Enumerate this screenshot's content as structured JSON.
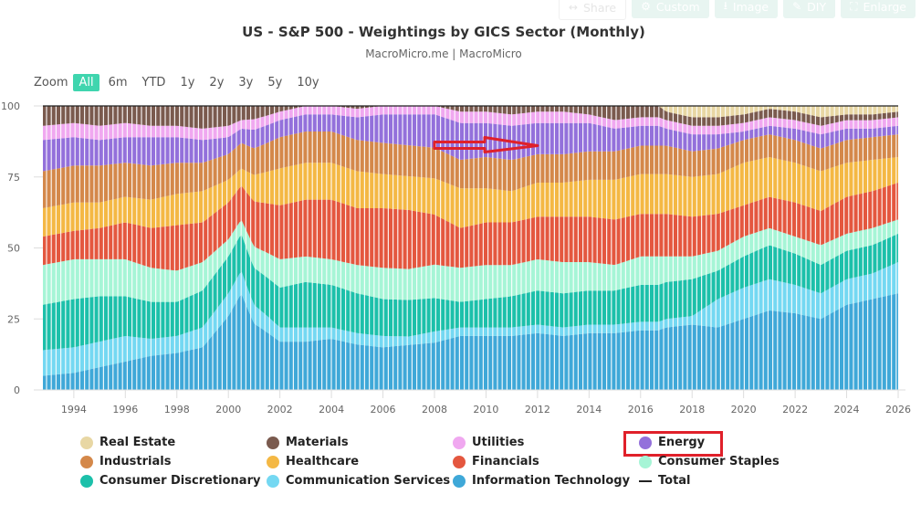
{
  "toolbar": {
    "buttons": [
      {
        "label": "Share",
        "icon": "share-icon"
      },
      {
        "label": "Custom",
        "icon": "gear-icon"
      },
      {
        "label": "Image",
        "icon": "download-icon"
      },
      {
        "label": "DIY",
        "icon": "pencil-icon"
      },
      {
        "label": "Enlarge",
        "icon": "expand-icon"
      }
    ]
  },
  "range_selector": {
    "label": "Zoom",
    "options": [
      "All",
      "6m",
      "YTD",
      "1y",
      "2y",
      "3y",
      "5y",
      "10y"
    ],
    "selected": "All"
  },
  "colors": {
    "Real Estate": "#e8d7a4",
    "Materials": "#7a5a4e",
    "Utilities": "#f0a8f0",
    "Energy": "#9370db",
    "Industrials": "#d4884a",
    "Healthcare": "#f4b844",
    "Financials": "#e4573f",
    "Consumer Staples": "#a6f5d6",
    "Consumer Discretionary": "#1cc0aa",
    "Communication Services": "#74d8f2",
    "Information Technology": "#3fa8d8",
    "highlight": "#e0202a",
    "accent": "#3fd5ae"
  },
  "annotation": {
    "type": "arrow",
    "color": "#e0202a",
    "points_to": "Energy band 2008-2012"
  },
  "chart_data": {
    "type": "area",
    "stacked": "percent",
    "title": "US - S&P 500 - Weightings by GICS Sector (Monthly)",
    "subtitle": "MacroMicro.me | MacroMicro",
    "xlabel": "",
    "ylabel": "",
    "ylim": [
      0,
      100
    ],
    "yticks": [
      0,
      25,
      50,
      75,
      100
    ],
    "xticks": [
      "1994",
      "1996",
      "1998",
      "2000",
      "2002",
      "2004",
      "2006",
      "2008",
      "2010",
      "2012",
      "2014",
      "2016",
      "2018",
      "2020",
      "2022",
      "2024",
      "2026"
    ],
    "grid": false,
    "legend_position": "bottom",
    "x": [
      1992.8,
      1994,
      1995,
      1996,
      1997,
      1998,
      1999,
      2000,
      2000.5,
      2001,
      2002,
      2003,
      2004,
      2005,
      2006,
      2007,
      2008,
      2009,
      2010,
      2011,
      2012,
      2013,
      2014,
      2015,
      2016,
      2016.7,
      2017,
      2018,
      2019,
      2020,
      2021,
      2022,
      2023,
      2024,
      2025,
      2026
    ],
    "series": [
      {
        "name": "Information Technology",
        "values": [
          5,
          6,
          8,
          10,
          12,
          13,
          15,
          26,
          34,
          25,
          17,
          17,
          18,
          16,
          15,
          16,
          17,
          19,
          19,
          19,
          20,
          19,
          20,
          20,
          21,
          21,
          22,
          23,
          22,
          25,
          28,
          27,
          25,
          30,
          32,
          34
        ]
      },
      {
        "name": "Communication Services",
        "values": [
          9,
          9,
          9,
          9,
          6,
          6,
          7,
          8,
          8,
          7,
          5,
          5,
          4,
          4,
          4,
          3,
          4,
          3,
          3,
          3,
          3,
          3,
          3,
          3,
          3,
          3,
          3,
          3,
          10,
          11,
          11,
          10,
          9,
          9,
          9,
          11
        ]
      },
      {
        "name": "Consumer Discretionary",
        "values": [
          16,
          17,
          16,
          14,
          13,
          12,
          13,
          13,
          13,
          14,
          14,
          16,
          15,
          14,
          13,
          13,
          12,
          9,
          10,
          11,
          12,
          12,
          12,
          12,
          13,
          13,
          13,
          13,
          10,
          11,
          12,
          11,
          10,
          10,
          10,
          10
        ]
      },
      {
        "name": "Consumer Staples",
        "values": [
          14,
          14,
          13,
          13,
          12,
          11,
          10,
          6,
          5,
          8,
          10,
          9,
          9,
          10,
          11,
          11,
          12,
          12,
          12,
          11,
          11,
          11,
          10,
          9,
          10,
          10,
          9,
          8,
          7,
          7,
          6,
          6,
          7,
          6,
          6,
          5
        ]
      },
      {
        "name": "Financials",
        "values": [
          10,
          10,
          11,
          13,
          14,
          16,
          14,
          13,
          12,
          17,
          19,
          20,
          21,
          20,
          21,
          21,
          18,
          14,
          15,
          15,
          15,
          16,
          16,
          16,
          15,
          15,
          15,
          14,
          13,
          11,
          11,
          12,
          12,
          13,
          13,
          13
        ]
      },
      {
        "name": "Healthcare",
        "values": [
          10,
          10,
          9,
          9,
          10,
          11,
          11,
          8,
          6,
          10,
          13,
          13,
          13,
          13,
          12,
          12,
          13,
          14,
          12,
          11,
          12,
          12,
          13,
          14,
          14,
          14,
          14,
          14,
          14,
          15,
          14,
          14,
          14,
          12,
          11,
          9
        ]
      },
      {
        "name": "Industrials",
        "values": [
          13,
          13,
          13,
          12,
          12,
          11,
          10,
          9,
          9,
          10,
          11,
          11,
          11,
          11,
          11,
          11,
          11,
          10,
          11,
          11,
          10,
          10,
          10,
          10,
          10,
          10,
          10,
          9,
          9,
          8,
          8,
          8,
          8,
          8,
          8,
          8
        ]
      },
      {
        "name": "Energy",
        "values": [
          11,
          10,
          9,
          9,
          10,
          9,
          8,
          6,
          5,
          7,
          6,
          6,
          6,
          8,
          10,
          11,
          12,
          13,
          12,
          12,
          11,
          11,
          10,
          8,
          7,
          7,
          6,
          6,
          5,
          3,
          3,
          4,
          5,
          4,
          3,
          3
        ]
      },
      {
        "name": "Utilities",
        "values": [
          5,
          5,
          5,
          5,
          4,
          4,
          4,
          4,
          3,
          4,
          3,
          3,
          3,
          3,
          3,
          3,
          3,
          4,
          4,
          4,
          4,
          4,
          3,
          3,
          3,
          3,
          3,
          3,
          3,
          3,
          3,
          3,
          3,
          3,
          3,
          3
        ]
      },
      {
        "name": "Materials",
        "values": [
          7,
          6,
          7,
          6,
          7,
          7,
          8,
          7,
          5,
          5,
          2,
          0,
          0,
          1,
          0,
          0,
          0,
          2,
          2,
          3,
          2,
          2,
          3,
          5,
          4,
          4,
          3,
          3,
          3,
          3,
          3,
          3,
          3,
          2,
          2,
          2
        ]
      },
      {
        "name": "Real Estate",
        "values": [
          0,
          0,
          0,
          0,
          0,
          0,
          0,
          0,
          0,
          0,
          0,
          0,
          0,
          0,
          0,
          0,
          0,
          0,
          0,
          0,
          0,
          0,
          0,
          0,
          0,
          0,
          2,
          4,
          4,
          3,
          1,
          2,
          4,
          3,
          3,
          2
        ]
      },
      {
        "name": "Total",
        "values": [
          100,
          100,
          100,
          100,
          100,
          100,
          100,
          100,
          100,
          100,
          100,
          100,
          100,
          100,
          100,
          100,
          100,
          100,
          100,
          100,
          100,
          100,
          100,
          100,
          100,
          100,
          100,
          100,
          100,
          100,
          100,
          100,
          100,
          100,
          100,
          100
        ]
      }
    ]
  }
}
